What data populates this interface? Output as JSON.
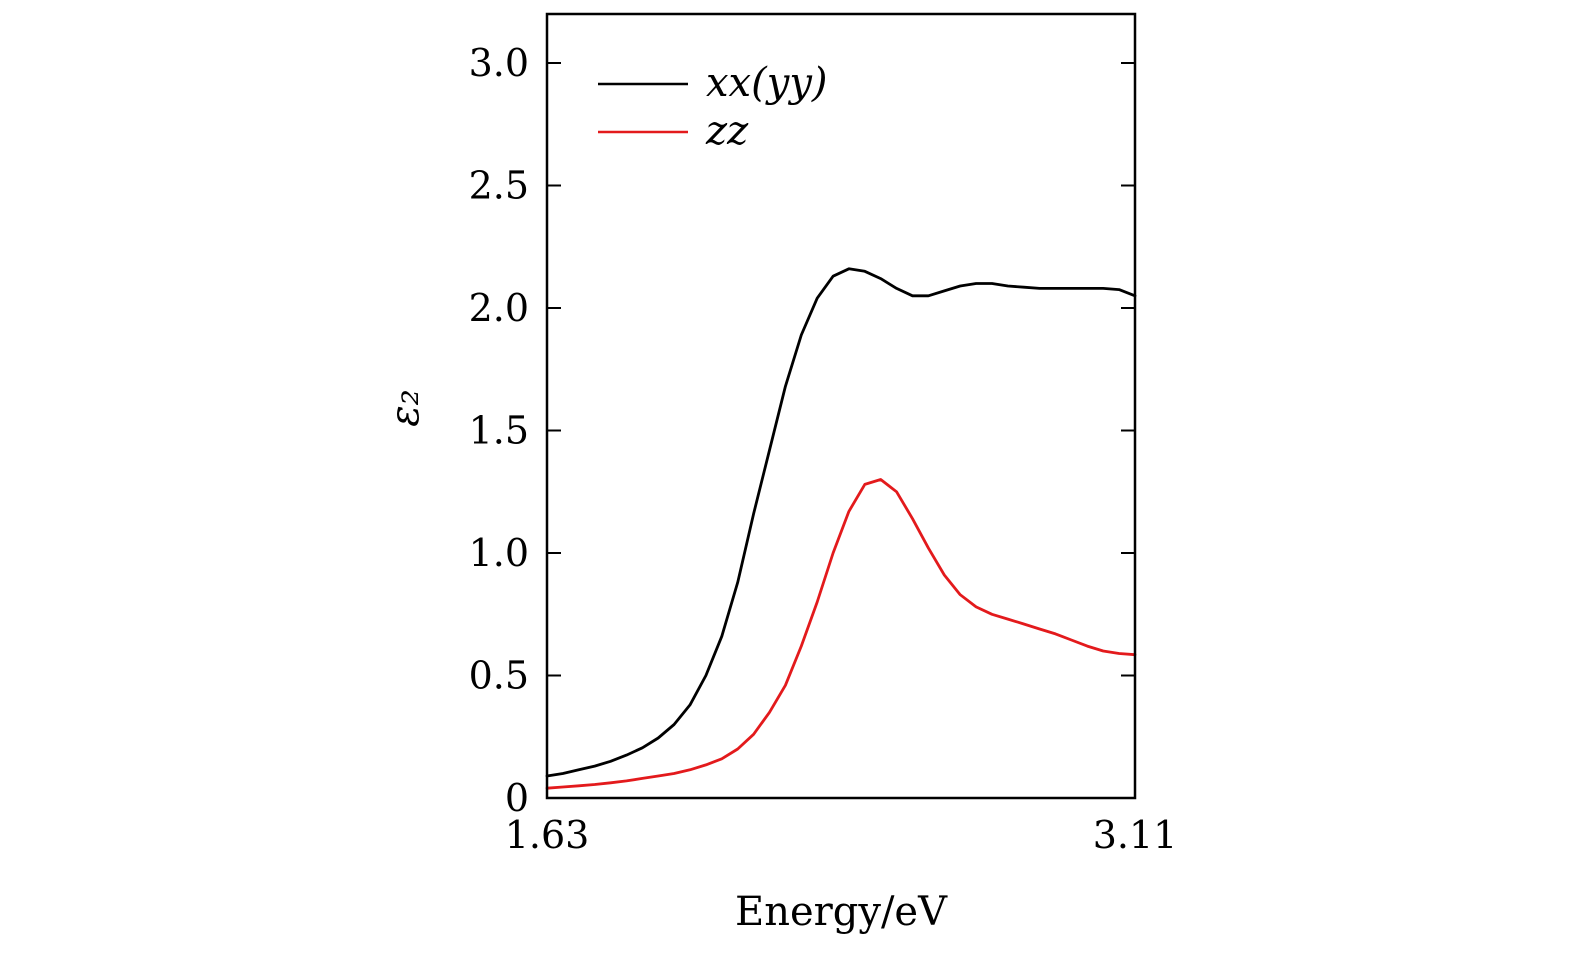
{
  "chart_data": {
    "type": "line",
    "title": "",
    "xlabel": "Energy/eV",
    "ylabel": "ε₂",
    "xlim": [
      1.63,
      3.11
    ],
    "ylim": [
      0,
      3.2
    ],
    "x_ticks": [
      1.63,
      3.11
    ],
    "x_tick_labels": [
      "1.63",
      "3.11"
    ],
    "y_ticks": [
      0,
      0.5,
      1.0,
      1.5,
      2.0,
      2.5,
      3.0
    ],
    "y_tick_labels": [
      "0",
      "0.5",
      "1.0",
      "1.5",
      "2.0",
      "2.5",
      "3.0"
    ],
    "grid": false,
    "legend_position": "top-left",
    "series": [
      {
        "name": "xx(yy)",
        "color": "#000000",
        "x": [
          1.63,
          1.67,
          1.71,
          1.75,
          1.79,
          1.83,
          1.87,
          1.91,
          1.95,
          1.99,
          2.03,
          2.07,
          2.11,
          2.15,
          2.19,
          2.23,
          2.27,
          2.31,
          2.35,
          2.39,
          2.43,
          2.47,
          2.51,
          2.55,
          2.59,
          2.63,
          2.67,
          2.71,
          2.75,
          2.79,
          2.83,
          2.87,
          2.91,
          2.95,
          2.99,
          3.03,
          3.07,
          3.11
        ],
        "y": [
          0.09,
          0.1,
          0.115,
          0.13,
          0.15,
          0.175,
          0.205,
          0.245,
          0.3,
          0.38,
          0.5,
          0.66,
          0.88,
          1.16,
          1.42,
          1.68,
          1.89,
          2.04,
          2.13,
          2.16,
          2.15,
          2.12,
          2.08,
          2.05,
          2.05,
          2.07,
          2.09,
          2.1,
          2.1,
          2.09,
          2.085,
          2.08,
          2.08,
          2.08,
          2.08,
          2.08,
          2.075,
          2.05
        ]
      },
      {
        "name": "zz",
        "color": "#e31a1c",
        "x": [
          1.63,
          1.67,
          1.71,
          1.75,
          1.79,
          1.83,
          1.87,
          1.91,
          1.95,
          1.99,
          2.03,
          2.07,
          2.11,
          2.15,
          2.19,
          2.23,
          2.27,
          2.31,
          2.35,
          2.39,
          2.43,
          2.47,
          2.51,
          2.55,
          2.59,
          2.63,
          2.67,
          2.71,
          2.75,
          2.79,
          2.83,
          2.87,
          2.91,
          2.95,
          2.99,
          3.03,
          3.07,
          3.11
        ],
        "y": [
          0.04,
          0.045,
          0.05,
          0.055,
          0.062,
          0.07,
          0.08,
          0.09,
          0.1,
          0.115,
          0.135,
          0.16,
          0.2,
          0.26,
          0.35,
          0.46,
          0.62,
          0.8,
          1.0,
          1.17,
          1.28,
          1.3,
          1.25,
          1.14,
          1.02,
          0.91,
          0.83,
          0.78,
          0.75,
          0.73,
          0.71,
          0.69,
          0.67,
          0.645,
          0.62,
          0.6,
          0.59,
          0.585
        ]
      }
    ]
  }
}
